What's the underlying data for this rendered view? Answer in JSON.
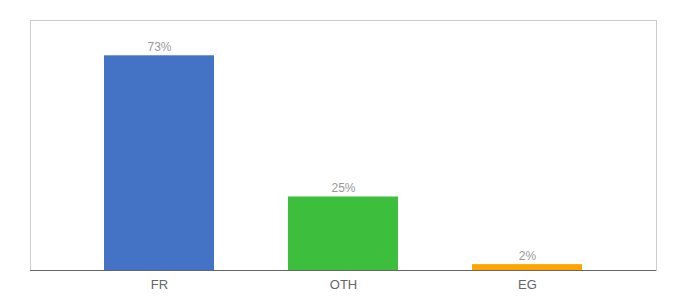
{
  "chart_data": {
    "type": "bar",
    "categories": [
      "FR",
      "OTH",
      "EG"
    ],
    "values": [
      73,
      25,
      2
    ],
    "value_labels": [
      "73%",
      "25%",
      "2%"
    ],
    "colors": [
      "#4472C4",
      "#3DBF3D",
      "#FFA500"
    ],
    "ylim": [
      0,
      85
    ],
    "data_labels": true,
    "tick_labels": "x",
    "grid": false
  }
}
